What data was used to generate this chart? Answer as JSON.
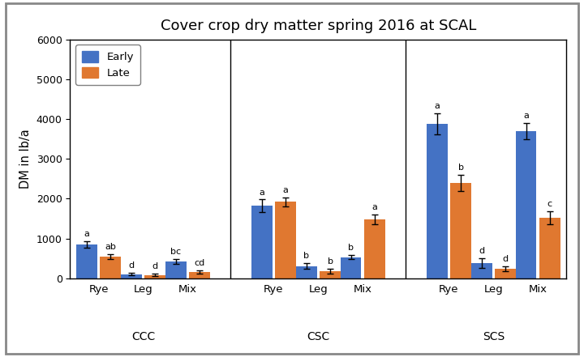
{
  "title": "Cover crop dry matter spring 2016 at SCAL",
  "ylabel": "DM in lb/a",
  "ylim": [
    0,
    6000
  ],
  "yticks": [
    0,
    1000,
    2000,
    3000,
    4000,
    5000,
    6000
  ],
  "groups": [
    "CCC",
    "CSC",
    "SCS"
  ],
  "crops": [
    "Rye",
    "Leg",
    "Mix"
  ],
  "early_color": "#4472C4",
  "late_color": "#E07830",
  "early_values": [
    [
      850,
      110,
      430
    ],
    [
      1820,
      310,
      530
    ],
    [
      3880,
      390,
      3700
    ]
  ],
  "late_values": [
    [
      540,
      90,
      170
    ],
    [
      1920,
      190,
      1480
    ],
    [
      2400,
      240,
      1520
    ]
  ],
  "early_errors": [
    [
      80,
      30,
      60
    ],
    [
      160,
      70,
      50
    ],
    [
      260,
      120,
      200
    ]
  ],
  "late_errors": [
    [
      60,
      30,
      40
    ],
    [
      110,
      60,
      130
    ],
    [
      200,
      60,
      170
    ]
  ],
  "early_labels": [
    [
      "a",
      "d",
      "bc"
    ],
    [
      "a",
      "b",
      "b"
    ],
    [
      "a",
      "d",
      "a"
    ]
  ],
  "late_labels": [
    [
      "ab",
      "d",
      "cd"
    ],
    [
      "a",
      "b",
      "a"
    ],
    [
      "b",
      "d",
      "c"
    ]
  ],
  "bar_width": 0.35,
  "figsize": [
    7.2,
    4.41
  ],
  "dpi": 100,
  "background_color": "#ffffff",
  "outer_border_color": "#aaaaaa"
}
